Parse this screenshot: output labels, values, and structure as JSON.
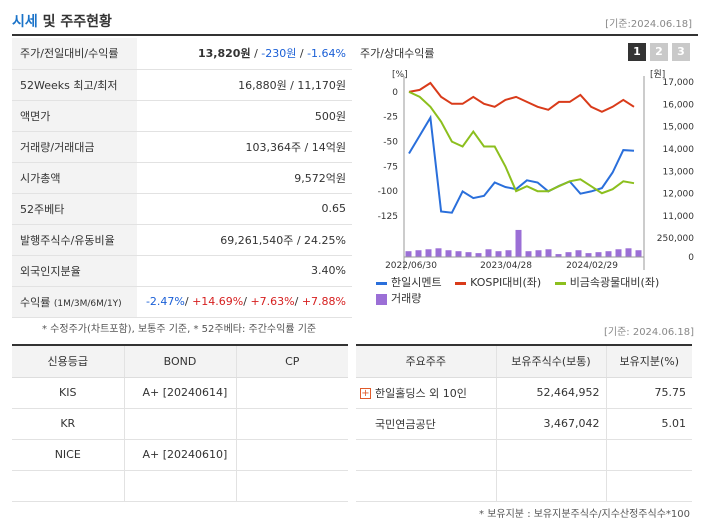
{
  "header": {
    "title_accent": "시세",
    "title_rest": " 및 주주현황",
    "date": "[기준:2024.06.18]"
  },
  "summary": {
    "price_label": "주가/전일대비/수익률",
    "price": "13,820원",
    "change": "-230원",
    "pct": "-1.64%",
    "w52_label": "52Weeks 최고/최저",
    "w52_value": "16,880원 / 11,170원",
    "par_label": "액면가",
    "par_value": "500원",
    "vol_label": "거래량/거래대금",
    "vol_value": "103,364주 / 14억원",
    "mcap_label": "시가총액",
    "mcap_value": "9,572억원",
    "beta_label": "52주베타",
    "beta_value": "0.65",
    "shares_label": "발행주식수/유동비율",
    "shares_value": "69,261,540주 / 24.25%",
    "foreign_label": "외국인지분율",
    "foreign_value": "3.40%",
    "ret_label": "수익률",
    "ret_periods": "(1M/3M/6M/1Y)",
    "ret_1m": "-2.47%",
    "ret_3m": "+14.69%",
    "ret_6m": "+7.63%",
    "ret_1y": "+7.88%"
  },
  "note1": "* 수정주가(차트포함), 보통주 기준, * 52주베타: 주간수익률 기준",
  "chart_panel": {
    "title": "주가/상대수익률",
    "tabs": [
      "1",
      "2",
      "3"
    ],
    "date": "[기준: 2024.06.18]"
  },
  "chart_data": {
    "type": "line",
    "left_axis_unit": "[%]",
    "right_axis_unit": "[원]",
    "left_ticks": [
      "0",
      "-25",
      "-50",
      "-75",
      "-100",
      "-125"
    ],
    "right_ticks": [
      "17,000",
      "16,000",
      "15,000",
      "14,000",
      "13,000",
      "12,000",
      "11,000"
    ],
    "vol_ticks": [
      "250,000",
      "0"
    ],
    "x_labels": [
      "2022/06/30",
      "2023/04/28",
      "2024/02/29"
    ],
    "ylim_left": [
      -125,
      10
    ],
    "series": [
      {
        "name": "한일시멘트",
        "color": "#2a6fdb",
        "axis": "right",
        "values": [
          13800,
          14600,
          15400,
          11200,
          11150,
          12100,
          11800,
          11900,
          12500,
          12300,
          12200,
          12600,
          12500,
          12100,
          12350,
          12550,
          12000,
          12100,
          12250,
          12950,
          13950,
          13920
        ]
      },
      {
        "name": "KOSPI대비(좌)",
        "color": "#d93b1a",
        "axis": "left",
        "values": [
          0,
          2,
          9,
          -5,
          -12,
          -12,
          -5,
          -12,
          -15,
          -8,
          -5,
          -10,
          -15,
          -18,
          -10,
          -10,
          -3,
          -15,
          -20,
          -15,
          -8,
          -15
        ]
      },
      {
        "name": "비금속광물대비(좌)",
        "color": "#8cbf1e",
        "axis": "left",
        "values": [
          0,
          -5,
          -15,
          -30,
          -50,
          -55,
          -40,
          -55,
          -55,
          -75,
          -100,
          -95,
          -100,
          -100,
          -95,
          -90,
          -88,
          -95,
          -102,
          -98,
          -90,
          -92
        ]
      }
    ],
    "volume": {
      "name": "거래량",
      "color": "#9b6fd6",
      "values": [
        60000,
        70000,
        80000,
        90000,
        70000,
        60000,
        50000,
        40000,
        80000,
        60000,
        70000,
        280000,
        60000,
        70000,
        80000,
        30000,
        50000,
        70000,
        40000,
        50000,
        60000,
        80000,
        90000,
        70000
      ]
    }
  },
  "credit": {
    "headers": [
      "신용등급",
      "BOND",
      "CP"
    ],
    "rows": [
      [
        "KIS",
        "A+ [20240614]",
        ""
      ],
      [
        "KR",
        "",
        ""
      ],
      [
        "NICE",
        "A+ [20240610]",
        ""
      ],
      [
        "",
        "",
        ""
      ]
    ]
  },
  "holders": {
    "headers": [
      "주요주주",
      "보유주식수(보통)",
      "보유지분(%)"
    ],
    "rows": [
      [
        "한일홀딩스 외 10인",
        "52,464,952",
        "75.75"
      ],
      [
        "국민연금공단",
        "3,467,042",
        "5.01"
      ],
      [
        "",
        "",
        ""
      ],
      [
        "",
        "",
        ""
      ]
    ]
  },
  "note2": "* 보유지분 : 보유지분주식수/지수산정주식수*100"
}
